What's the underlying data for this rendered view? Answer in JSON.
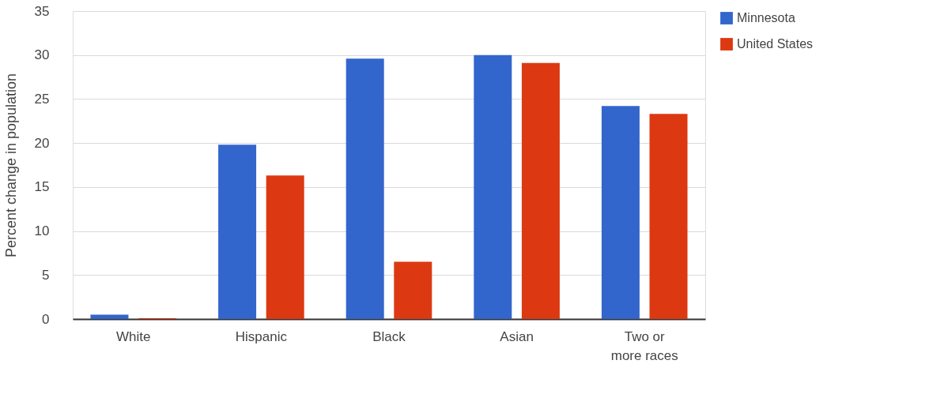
{
  "chart_data": {
    "type": "bar",
    "ylabel": "Percent change in population",
    "categories": [
      "White",
      "Hispanic",
      "Black",
      "Asian",
      "Two or\nmore races"
    ],
    "series": [
      {
        "name": "Minnesota",
        "color": "#3366cc",
        "values": [
          0.5,
          19.8,
          29.6,
          30.0,
          24.2
        ]
      },
      {
        "name": "United States",
        "color": "#dc3912",
        "values": [
          0.1,
          16.3,
          6.5,
          29.1,
          23.3
        ]
      }
    ],
    "ylim": [
      0,
      35
    ],
    "yticks": [
      0,
      5,
      10,
      15,
      20,
      25,
      30,
      35
    ],
    "grid": "y",
    "legend": "top right"
  }
}
